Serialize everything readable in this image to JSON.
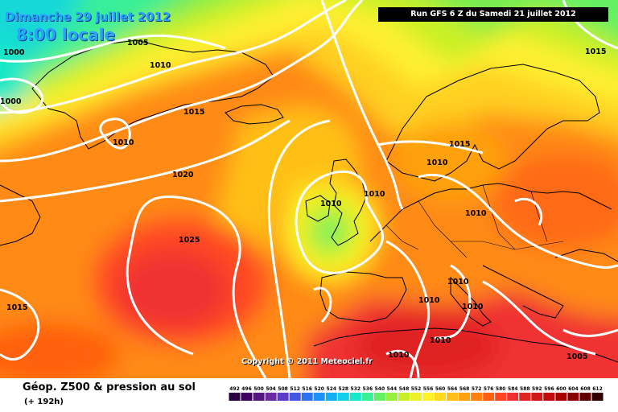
{
  "header": {
    "date": "Dimanche 29 juillet 2012",
    "time": "8:00 locale",
    "run_info": "Run GFS 6 Z du Samedi 21 juillet 2012"
  },
  "copyright": "Copyright © 2011 Meteociel.fr",
  "legend": {
    "title": "Géop. Z500 & pression au sol",
    "subtitle": "(+ 192h)",
    "scale_values": [
      "492",
      "496",
      "500",
      "504",
      "508",
      "512",
      "516",
      "520",
      "524",
      "528",
      "532",
      "536",
      "540",
      "544",
      "548",
      "552",
      "556",
      "560",
      "564",
      "568",
      "572",
      "576",
      "580",
      "584",
      "588",
      "592",
      "596",
      "600",
      "604",
      "608",
      "612"
    ],
    "scale_colors": [
      "#2a0040",
      "#3c0060",
      "#55157e",
      "#6a2aa0",
      "#5a3cc8",
      "#4456e0",
      "#2f70f0",
      "#1e90f6",
      "#12b0f2",
      "#0fd0e6",
      "#18e8c8",
      "#38f098",
      "#64f064",
      "#98f03c",
      "#c8f028",
      "#eef028",
      "#fff028",
      "#ffd820",
      "#ffbe18",
      "#ffa010",
      "#ff8010",
      "#ff6010",
      "#ff4424",
      "#f03030",
      "#e02424",
      "#d01818",
      "#c00c0c",
      "#a80000",
      "#880000",
      "#600000",
      "#300000"
    ]
  },
  "isobars": [
    {
      "label": "1005"
    },
    {
      "label": "1010"
    },
    {
      "label": "1000"
    },
    {
      "label": "1000"
    },
    {
      "label": "1015"
    },
    {
      "label": "1010"
    },
    {
      "label": "1020"
    },
    {
      "label": "1025"
    },
    {
      "label": "1015"
    },
    {
      "label": "1015"
    },
    {
      "label": "1010"
    },
    {
      "label": "1010"
    },
    {
      "label": "1010"
    },
    {
      "label": "1010"
    },
    {
      "label": "1010"
    },
    {
      "label": "1010"
    },
    {
      "label": "1010"
    },
    {
      "label": "1010"
    },
    {
      "label": "1010"
    },
    {
      "label": "1015"
    },
    {
      "label": "1005"
    }
  ],
  "colors": {
    "z500_low": "#64f064",
    "z500_mid": "#fff028",
    "z500_high": "#ff6010",
    "isobar_line": "#ffffff",
    "coastline": "#000000",
    "header_text": "#2aa2ff"
  }
}
